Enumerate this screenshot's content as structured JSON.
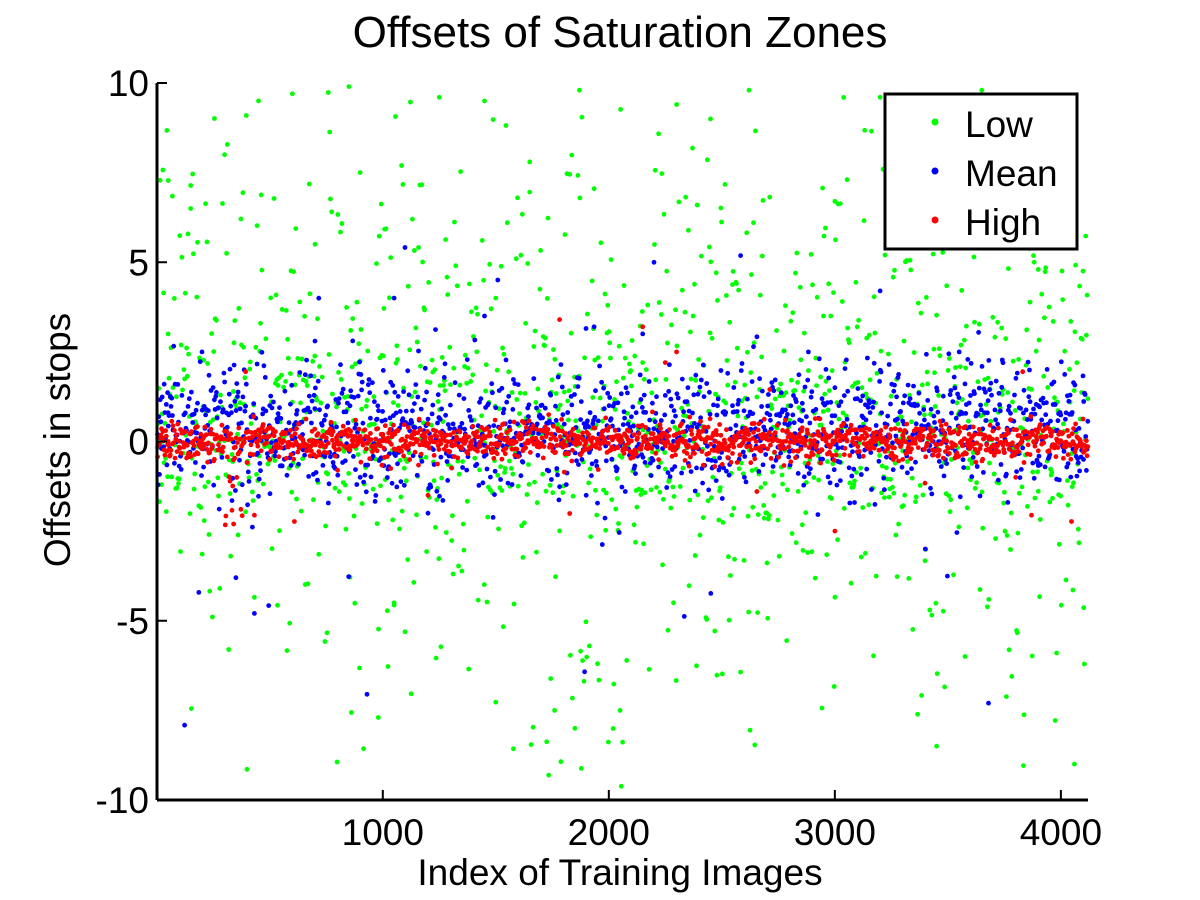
{
  "chart_data": {
    "type": "scatter",
    "title": "Offsets of Saturation Zones",
    "xlabel": "Index of Training Images",
    "ylabel": "Offsets in stops",
    "xlim": [
      1,
      4120
    ],
    "ylim": [
      -10,
      10
    ],
    "xticks": [
      1000,
      2000,
      3000,
      4000
    ],
    "xtick_labels": [
      "1000",
      "2000",
      "3000",
      "4000"
    ],
    "yticks": [
      -10,
      -5,
      0,
      5,
      10
    ],
    "ytick_labels": [
      "-10",
      "-5",
      "0",
      "5",
      "10"
    ],
    "grid": false,
    "legend_position": "top-right",
    "n_points_per_series": 4120,
    "series": [
      {
        "name": "Low",
        "color": "#00ff00",
        "marker": "*",
        "values_sample": [
          [
            50,
            3.0
          ],
          [
            150,
            6.5
          ],
          [
            300,
            8.0
          ],
          [
            450,
            9.5
          ],
          [
            600,
            9.7
          ],
          [
            700,
            5.5
          ],
          [
            850,
            9.9
          ],
          [
            900,
            7.5
          ],
          [
            980,
            -7.7
          ],
          [
            1050,
            -4.5
          ],
          [
            1250,
            9.6
          ],
          [
            1450,
            9.5
          ],
          [
            1500,
            4.0
          ],
          [
            1650,
            7.8
          ],
          [
            1760,
            -7.5
          ],
          [
            1850,
            -8.0
          ],
          [
            1870,
            9.8
          ],
          [
            2050,
            -7.5
          ],
          [
            2150,
            2.2
          ],
          [
            2300,
            9.4
          ],
          [
            2450,
            9.0
          ],
          [
            2620,
            9.8
          ],
          [
            2700,
            -2.0
          ],
          [
            2950,
            3.5
          ],
          [
            3000,
            6.7
          ],
          [
            3200,
            9.6
          ],
          [
            3450,
            -8.5
          ],
          [
            3650,
            9.8
          ],
          [
            3900,
            4.8
          ],
          [
            4060,
            -9.0
          ]
        ]
      },
      {
        "name": "Mean",
        "color": "#0000ff",
        "marker": "*",
        "values_sample": [
          [
            50,
            0.8
          ],
          [
            200,
            2.5
          ],
          [
            350,
            -3.8
          ],
          [
            500,
            1.0
          ],
          [
            700,
            2.8
          ],
          [
            900,
            -1.0
          ],
          [
            1050,
            4.0
          ],
          [
            1200,
            -2.0
          ],
          [
            1450,
            3.5
          ],
          [
            1700,
            1.0
          ],
          [
            1900,
            -1.5
          ],
          [
            2150,
            3.0
          ],
          [
            2200,
            5.0
          ],
          [
            2350,
            1.5
          ],
          [
            2600,
            -1.0
          ],
          [
            2800,
            0.5
          ],
          [
            3000,
            1.5
          ],
          [
            3200,
            4.2
          ],
          [
            3400,
            -3.0
          ],
          [
            3550,
            2.5
          ],
          [
            3680,
            -7.3
          ],
          [
            3900,
            1.0
          ],
          [
            4100,
            -0.5
          ]
        ]
      },
      {
        "name": "High",
        "color": "#ff0000",
        "marker": "*",
        "values_sample": [
          [
            50,
            0.0
          ],
          [
            200,
            -0.2
          ],
          [
            340,
            -2.3
          ],
          [
            500,
            -0.5
          ],
          [
            800,
            -0.8
          ],
          [
            1000,
            0.2
          ],
          [
            1200,
            -1.5
          ],
          [
            1500,
            -0.3
          ],
          [
            1800,
            0.0
          ],
          [
            2150,
            3.2
          ],
          [
            2250,
            2.2
          ],
          [
            2300,
            2.5
          ],
          [
            2600,
            0.3
          ],
          [
            2800,
            0.2
          ],
          [
            3000,
            -2.5
          ],
          [
            3300,
            -0.5
          ],
          [
            3550,
            0.4
          ],
          [
            3800,
            -1.0
          ],
          [
            4000,
            0.0
          ],
          [
            4100,
            -0.3
          ]
        ]
      }
    ]
  }
}
